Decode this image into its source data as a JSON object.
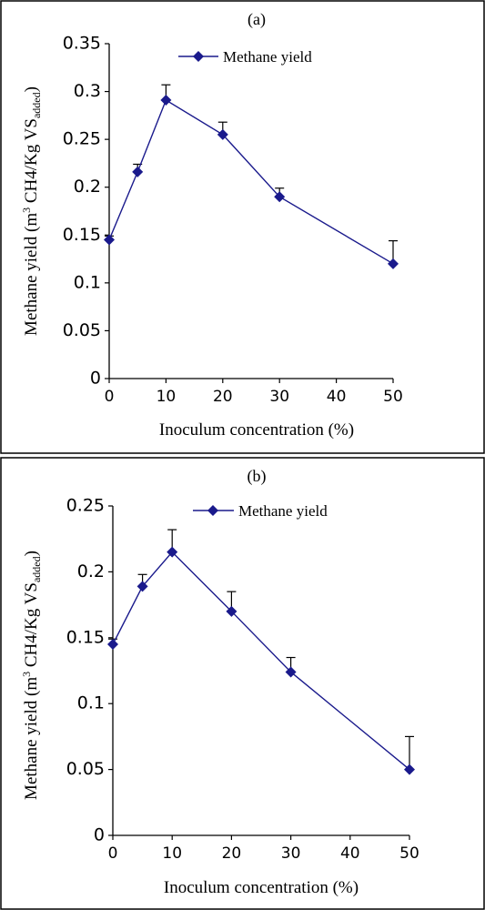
{
  "chart_data": [
    {
      "type": "line",
      "title": "(a)",
      "xlabel": "Inoculum concentration (%)",
      "ylabel": {
        "main": "Methane yield (m",
        "sup": "3",
        "mid": " CH4/Kg VS",
        "sub": "added",
        "end": ")"
      },
      "xlim": [
        0,
        50
      ],
      "ylim": [
        0,
        0.35
      ],
      "x_ticks": [
        "0",
        "10",
        "20",
        "30",
        "40",
        "50"
      ],
      "y_ticks": [
        "0",
        "0.05",
        "0.1",
        "0.15",
        "0.2",
        "0.25",
        "0.3",
        "0.35"
      ],
      "legend_position": "top-center",
      "grid": false,
      "series": [
        {
          "name": "Methane yield",
          "color": "#1a1a8c",
          "marker": "diamond",
          "x": [
            0,
            5,
            10,
            20,
            30,
            50
          ],
          "values": [
            0.145,
            0.216,
            0.291,
            0.255,
            0.19,
            0.12
          ],
          "error": [
            0.004,
            0.008,
            0.016,
            0.013,
            0.009,
            0.024
          ]
        }
      ]
    },
    {
      "type": "line",
      "title": "(b)",
      "xlabel": "Inoculum concentration (%)",
      "ylabel": {
        "main": "Methane yield (m",
        "sup": "3",
        "mid": " CH4/Kg VS",
        "sub": "added",
        "end": ")"
      },
      "xlim": [
        0,
        50
      ],
      "ylim": [
        0,
        0.25
      ],
      "x_ticks": [
        "0",
        "10",
        "20",
        "30",
        "40",
        "50"
      ],
      "y_ticks": [
        "0",
        "0.05",
        "0.1",
        "0.15",
        "0.2",
        "0.25"
      ],
      "legend_position": "top-center",
      "grid": false,
      "series": [
        {
          "name": "Methane yield",
          "color": "#1a1a8c",
          "marker": "diamond",
          "x": [
            0,
            5,
            10,
            20,
            30,
            50
          ],
          "values": [
            0.145,
            0.189,
            0.215,
            0.17,
            0.124,
            0.05
          ],
          "error": [
            0.004,
            0.009,
            0.017,
            0.015,
            0.011,
            0.025
          ]
        }
      ]
    }
  ]
}
